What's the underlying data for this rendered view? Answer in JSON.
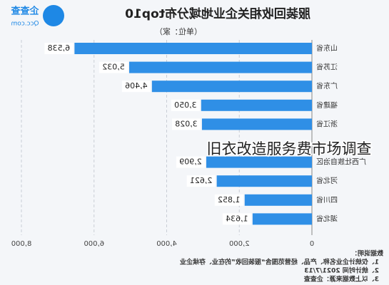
{
  "chart_data": {
    "type": "barh",
    "title": "服装回收相关企业地域分布top10",
    "subtitle": "（单位：家）",
    "categories": [
      "山东省",
      "江苏省",
      "广东省",
      "福建省",
      "浙江省",
      null,
      "广西壮族自治区",
      "河北省",
      "四川省",
      "湖北省"
    ],
    "values": [
      6538,
      5032,
      4406,
      3050,
      3028,
      null,
      2909,
      2621,
      1852,
      1634
    ],
    "value_labels": [
      "6,538",
      "5,032",
      "4,406",
      "3,050",
      "3,028",
      null,
      "2,909",
      "2,621",
      "1,852",
      "1,634"
    ],
    "color": "#2f8fe6",
    "xlim": [
      0,
      8000
    ],
    "xticks": [
      0,
      {
        "value": 2000,
        "label": "2,000"
      },
      {
        "value": 4000,
        "label": "4,000"
      },
      {
        "value": 6000,
        "label": "6,000"
      },
      {
        "value": 8000,
        "label": "8,000"
      }
    ],
    "grid": true,
    "mirrored": true
  },
  "logo": {
    "name": "企查查",
    "url": "Qcc.com"
  },
  "notes": [
    "数据说明：",
    "1、仅统计企业名称、产品、经营范围含“服装回收”的在业、存续企业",
    "2、统计时间 2021/7/13",
    "3、以上数据来源：企查查"
  ],
  "watermark": "旧衣改造服务费市场调查"
}
